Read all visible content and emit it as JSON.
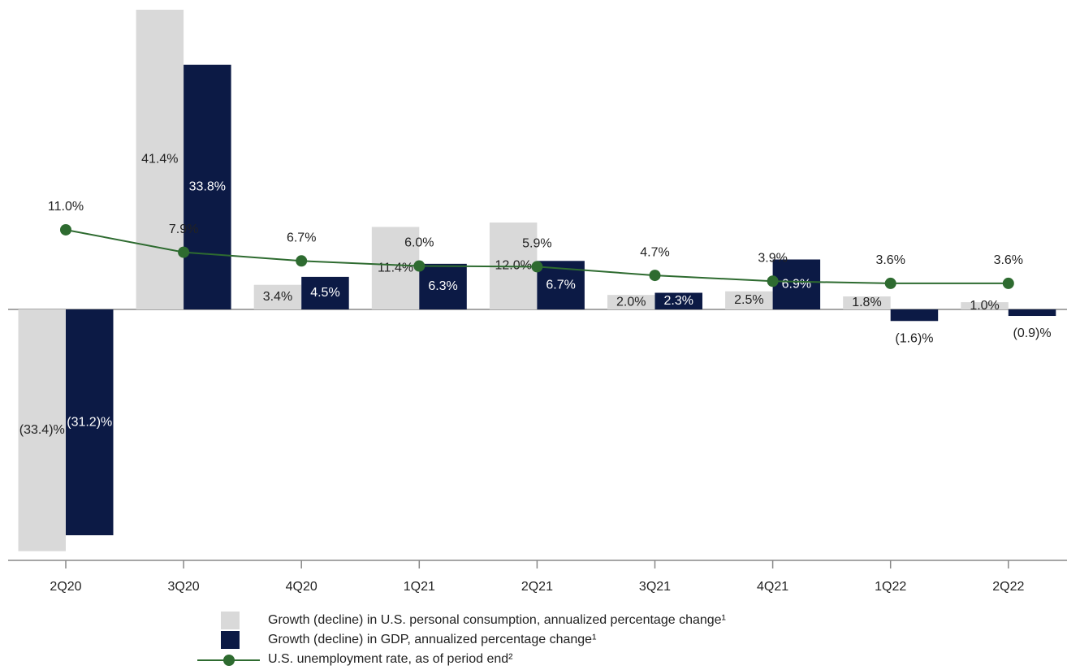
{
  "chart_data": {
    "type": "bar-line",
    "categories": [
      "2Q20",
      "3Q20",
      "4Q20",
      "1Q21",
      "2Q21",
      "3Q21",
      "4Q21",
      "1Q22",
      "2Q22"
    ],
    "series": [
      {
        "name": "Growth (decline) in U.S. personal consumption, annualized percentage change¹",
        "type": "bar",
        "color": "#d9d9d9",
        "values": [
          -33.4,
          41.4,
          3.4,
          11.4,
          12.0,
          2.0,
          2.5,
          1.8,
          1.0
        ],
        "value_labels": [
          "(33.4)%",
          "41.4%",
          "3.4%",
          "11.4%",
          "12.0%",
          "2.0%",
          "2.5%",
          "1.8%",
          "1.0%"
        ]
      },
      {
        "name": "Growth (decline) in GDP, annualized percentage change¹",
        "type": "bar",
        "color": "#0c1a45",
        "values": [
          -31.2,
          33.8,
          4.5,
          6.3,
          6.7,
          2.3,
          6.9,
          -1.6,
          -0.9
        ],
        "value_labels": [
          "(31.2)%",
          "33.8%",
          "4.5%",
          "6.3%",
          "6.7%",
          "2.3%",
          "6.9%",
          "(1.6)%",
          "(0.9)%"
        ]
      },
      {
        "name": "U.S. unemployment rate, as of period end²",
        "type": "line",
        "color": "#2e6b30",
        "values": [
          11.0,
          7.9,
          6.7,
          6.0,
          5.9,
          4.7,
          3.9,
          3.6,
          3.6
        ],
        "value_labels": [
          "11.0%",
          "7.9%",
          "6.7%",
          "6.0%",
          "5.9%",
          "4.7%",
          "3.9%",
          "3.6%",
          "3.6%"
        ]
      }
    ]
  }
}
